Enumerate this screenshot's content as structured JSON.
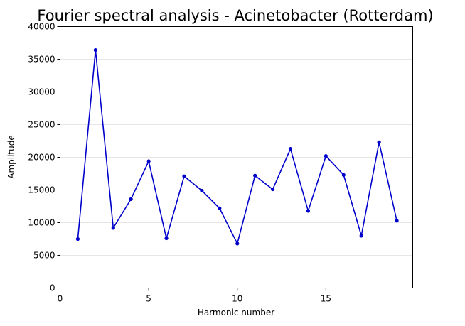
{
  "chart_data": {
    "type": "line",
    "title": "Fourier spectral analysis - Acinetobacter (Rotterdam)",
    "xlabel": "Harmonic number",
    "ylabel": "Amplitude",
    "xlim": [
      0,
      19.9
    ],
    "ylim": [
      0,
      40000
    ],
    "x_ticks": [
      0,
      5,
      10,
      15
    ],
    "y_ticks": [
      0,
      5000,
      10000,
      15000,
      20000,
      25000,
      30000,
      35000,
      40000
    ],
    "grid": "horizontal",
    "series": [
      {
        "color": "#0000cc",
        "x": [
          1,
          2,
          3,
          4,
          5,
          6,
          7,
          8,
          9,
          10,
          11,
          12,
          13,
          14,
          15,
          16,
          17,
          18,
          19
        ],
        "y": [
          7500,
          36400,
          9200,
          13600,
          19400,
          7600,
          17100,
          14900,
          12200,
          6800,
          17200,
          15100,
          21300,
          11800,
          20200,
          17300,
          8000,
          22300,
          10300
        ]
      }
    ]
  }
}
